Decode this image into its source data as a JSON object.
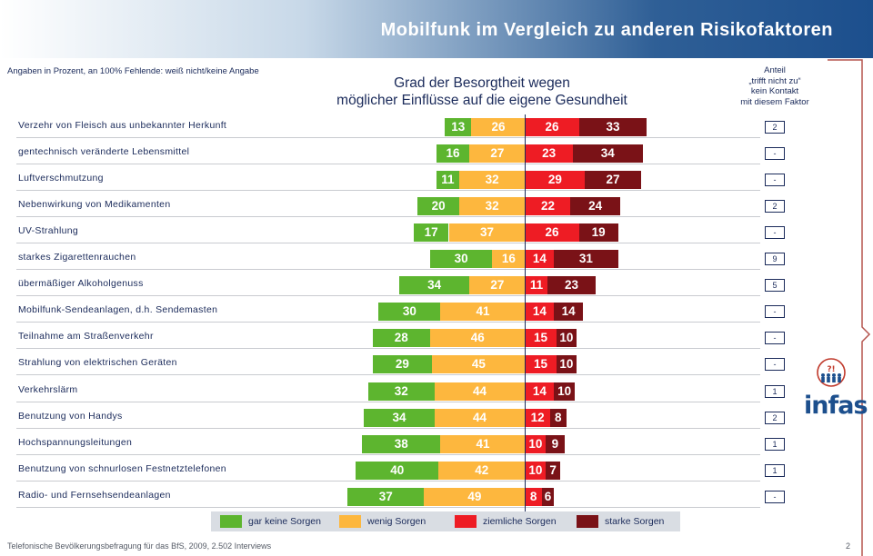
{
  "header": {
    "title": "Mobilfunk im Vergleich zu anderen Risikofaktoren"
  },
  "note": "Angaben in Prozent, an 100% Fehlende: weiß nicht/keine Angabe",
  "subtitle": {
    "line1": "Grad der Besorgtheit wegen",
    "line2": "möglicher Einflüsse auf die eigene Gesundheit"
  },
  "share_header": {
    "line1": "Anteil",
    "line2": "„trifft nicht zu“",
    "line3": "kein Kontakt",
    "line4": "mit diesem Faktor"
  },
  "colors": {
    "gar_keine": "#5db52f",
    "wenig": "#fdb73e",
    "ziemliche": "#ee1c24",
    "starke": "#7a1217"
  },
  "chart_data": {
    "type": "bar",
    "subtype": "diverging-stacked-horizontal",
    "title": "Grad der Besorgtheit wegen möglicher Einflüsse auf die eigene Gesundheit",
    "unit": "Prozent",
    "categories": [
      "Verzehr von Fleisch aus unbekannter Herkunft",
      "gentechnisch veränderte Lebensmittel",
      "Luftverschmutzung",
      "Nebenwirkung von Medikamenten",
      "UV-Strahlung",
      "starkes Zigarettenrauchen",
      "übermäßiger Alkoholgenuss",
      "Mobilfunk-Sendeanlagen, d.h. Sendemasten",
      "Teilnahme am Straßenverkehr",
      "Strahlung von elektrischen Geräten",
      "Verkehrslärm",
      "Benutzung von Handys",
      "Hochspannungsleitungen",
      "Benutzung von schnurlosen Festnetztelefonen",
      "Radio- und Fernsehsendeanlagen"
    ],
    "series": [
      {
        "name": "gar keine Sorgen",
        "side": "left",
        "values": [
          13,
          16,
          11,
          20,
          17,
          30,
          34,
          30,
          28,
          29,
          32,
          34,
          38,
          40,
          37
        ]
      },
      {
        "name": "wenig Sorgen",
        "side": "left",
        "values": [
          26,
          27,
          32,
          32,
          37,
          16,
          27,
          41,
          46,
          45,
          44,
          44,
          41,
          42,
          49
        ]
      },
      {
        "name": "ziemliche Sorgen",
        "side": "right",
        "values": [
          26,
          23,
          29,
          22,
          26,
          14,
          11,
          14,
          15,
          15,
          14,
          12,
          10,
          10,
          8
        ]
      },
      {
        "name": "starke Sorgen",
        "side": "right",
        "values": [
          33,
          34,
          27,
          24,
          19,
          31,
          23,
          14,
          10,
          10,
          10,
          8,
          9,
          7,
          6
        ]
      }
    ],
    "share_not_applicable": [
      "2",
      "-",
      "-",
      "2",
      "-",
      "9",
      "5",
      "-",
      "-",
      "-",
      "1",
      "2",
      "1",
      "1",
      "-"
    ],
    "legend_position": "bottom"
  },
  "footer": {
    "source": "Telefonische Bevölkerungsbefragung für das BfS, 2009, 2.502 Interviews",
    "page": "2"
  },
  "logo": {
    "text": "infas"
  }
}
